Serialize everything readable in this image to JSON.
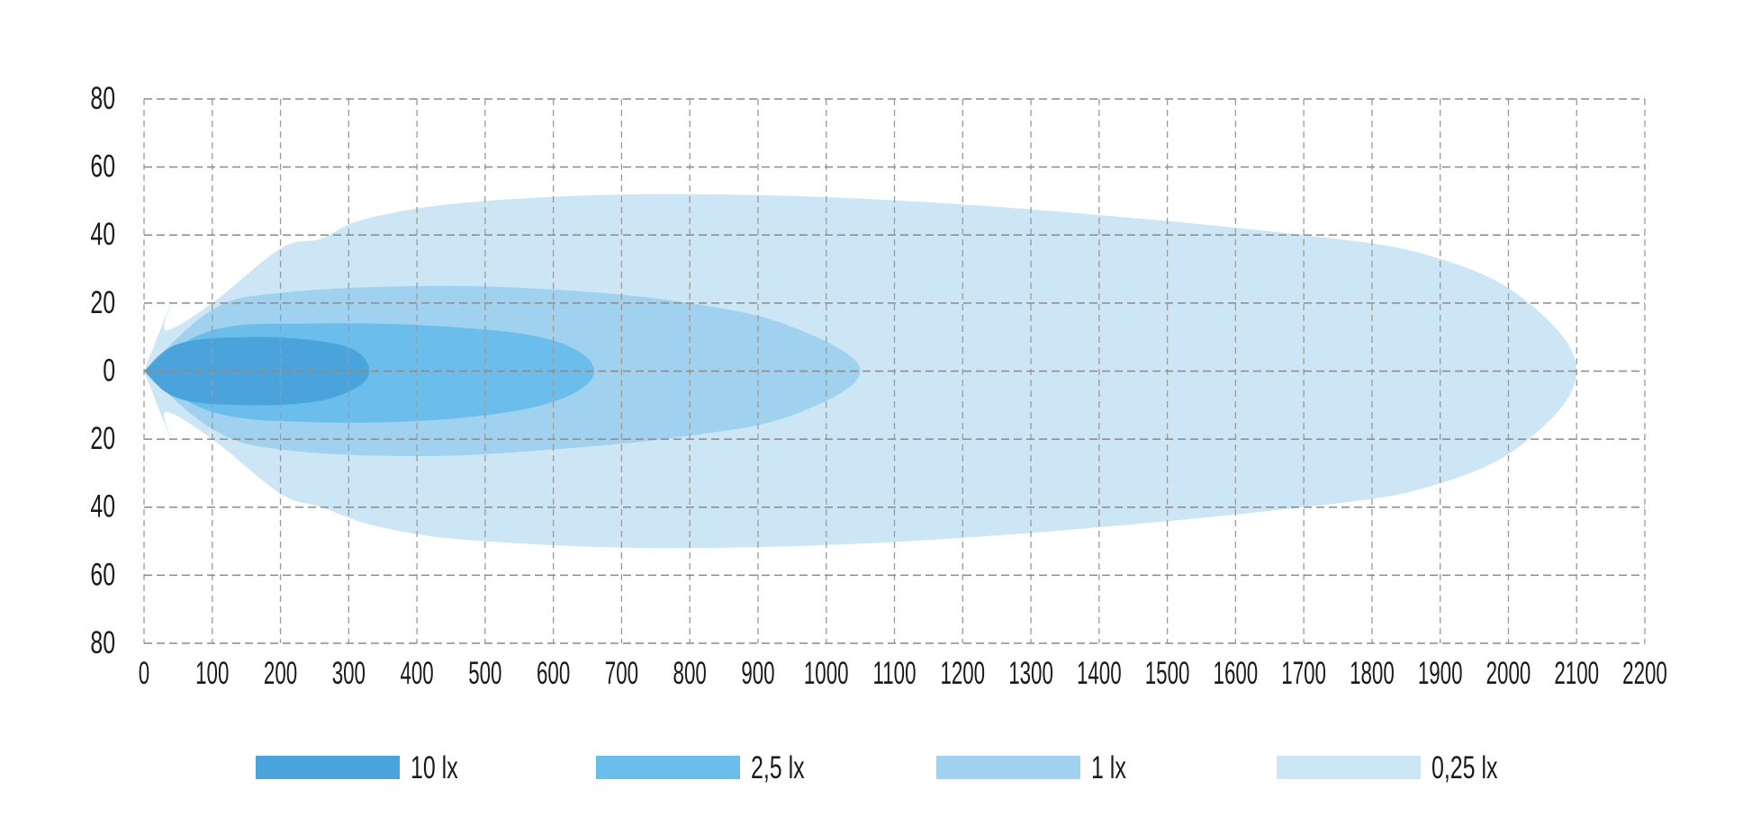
{
  "chart_data": {
    "type": "area",
    "title": "",
    "xlabel": "",
    "ylabel": "",
    "xlim": [
      0,
      2200
    ],
    "ylim": [
      -80,
      80
    ],
    "grid": true,
    "x_ticks": [
      "0",
      "100",
      "200",
      "300",
      "400",
      "500",
      "600",
      "700",
      "800",
      "900",
      "1000",
      "1100",
      "1200",
      "1300",
      "1400",
      "1500",
      "1600",
      "1700",
      "1800",
      "1900",
      "2000",
      "2100",
      "2200"
    ],
    "y_ticks": [
      {
        "value": 80,
        "label": "80"
      },
      {
        "value": 60,
        "label": "60"
      },
      {
        "value": 40,
        "label": "40"
      },
      {
        "value": 20,
        "label": "20"
      },
      {
        "value": 0,
        "label": "0"
      },
      {
        "value": -20,
        "label": "20"
      },
      {
        "value": -40,
        "label": "40"
      },
      {
        "value": -60,
        "label": "60"
      },
      {
        "value": -80,
        "label": "80"
      }
    ],
    "legend_position": "bottom",
    "series": [
      {
        "name": "0,25 lx",
        "color": "#cde6f5",
        "points": [
          [
            0,
            0
          ],
          [
            40,
            20
          ],
          [
            32,
            12
          ],
          [
            100,
            20
          ],
          [
            200,
            36
          ],
          [
            260,
            39
          ],
          [
            330,
            45
          ],
          [
            500,
            50
          ],
          [
            800,
            52
          ],
          [
            1200,
            49
          ],
          [
            1700,
            40
          ],
          [
            1900,
            33
          ],
          [
            2030,
            20
          ],
          [
            2100,
            0
          ],
          [
            2030,
            -20
          ],
          [
            1900,
            -33
          ],
          [
            1700,
            -40
          ],
          [
            1200,
            -49
          ],
          [
            800,
            -52
          ],
          [
            500,
            -50
          ],
          [
            350,
            -46
          ],
          [
            260,
            -40
          ],
          [
            200,
            -36
          ],
          [
            100,
            -20
          ],
          [
            32,
            -12
          ],
          [
            40,
            -20
          ],
          [
            0,
            0
          ]
        ]
      },
      {
        "name": "1 lx",
        "color": "#a0d2f0",
        "points": [
          [
            0,
            0
          ],
          [
            100,
            18
          ],
          [
            200,
            23
          ],
          [
            400,
            25
          ],
          [
            600,
            24
          ],
          [
            800,
            20
          ],
          [
            950,
            13
          ],
          [
            1050,
            0
          ],
          [
            950,
            -13
          ],
          [
            800,
            -19
          ],
          [
            600,
            -23
          ],
          [
            400,
            -25
          ],
          [
            200,
            -23
          ],
          [
            100,
            -17
          ],
          [
            0,
            0
          ]
        ]
      },
      {
        "name": "2,5 lx",
        "color": "#6bbdec",
        "points": [
          [
            0,
            0
          ],
          [
            100,
            12
          ],
          [
            250,
            14
          ],
          [
            450,
            13
          ],
          [
            600,
            9
          ],
          [
            660,
            0
          ],
          [
            600,
            -9
          ],
          [
            450,
            -14
          ],
          [
            250,
            -15
          ],
          [
            100,
            -12
          ],
          [
            0,
            0
          ]
        ]
      },
      {
        "name": "10 lx",
        "color": "#4aa3db",
        "points": [
          [
            0,
            0
          ],
          [
            50,
            8
          ],
          [
            150,
            10
          ],
          [
            250,
            9
          ],
          [
            310,
            6
          ],
          [
            330,
            0
          ],
          [
            310,
            -5
          ],
          [
            250,
            -9
          ],
          [
            150,
            -10
          ],
          [
            50,
            -8
          ],
          [
            0,
            0
          ]
        ]
      }
    ],
    "legend": [
      {
        "label": "10 lx",
        "color": "#4aa3db"
      },
      {
        "label": "2,5 lx",
        "color": "#6bbdec"
      },
      {
        "label": "1 lx",
        "color": "#a0d2f0"
      },
      {
        "label": "0,25 lx",
        "color": "#cde6f5"
      }
    ]
  }
}
